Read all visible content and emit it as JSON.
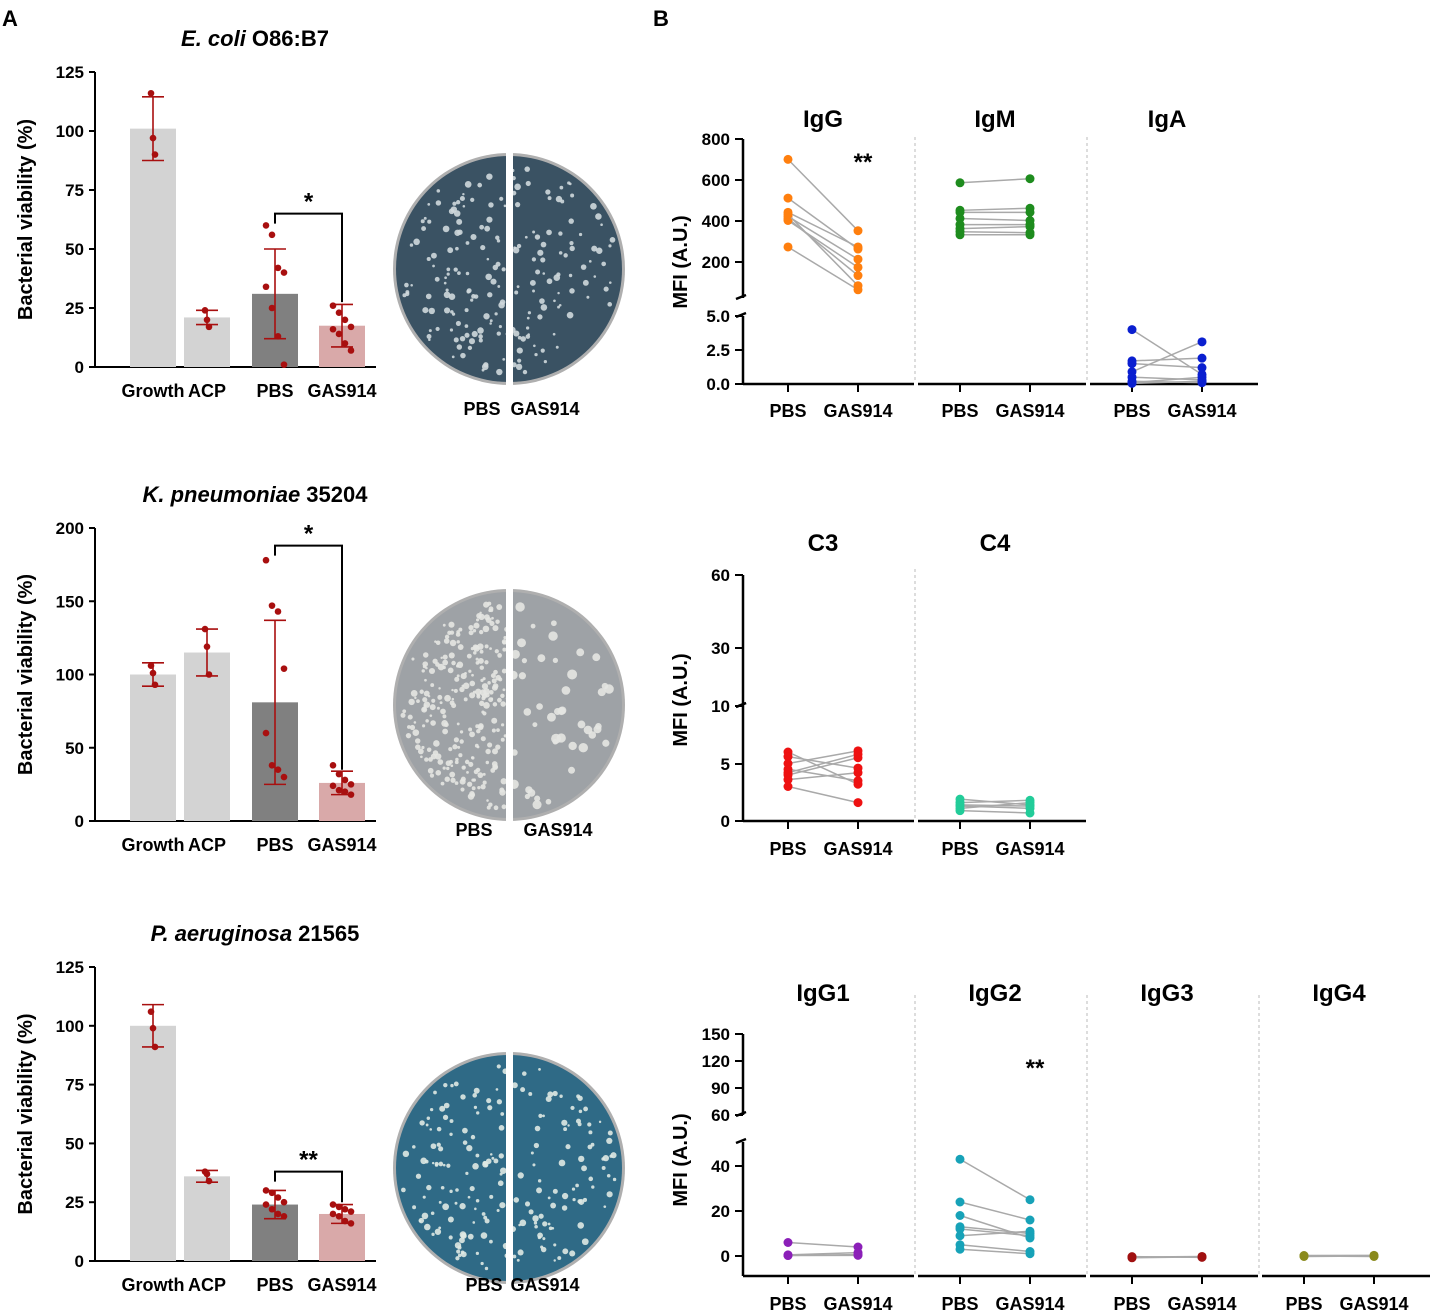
{
  "figure": {
    "panel_a_label": "A",
    "panel_b_label": "B"
  },
  "colors": {
    "bar_growth": "#d3d3d3",
    "bar_acp": "#d3d3d3",
    "bar_pbs": "#808080",
    "bar_gas914": "#d9a9a9",
    "dot_red": "#a80f0f",
    "line_gray": "#a9a9a9",
    "IgG": "#ff7f0e",
    "IgM": "#1e8c1e",
    "IgA": "#0a1fd0",
    "C3": "#ee1111",
    "C4": "#22cc99",
    "IgG1": "#8b1fb8",
    "IgG2": "#17a2b8",
    "IgG3": "#a01010",
    "IgG4": "#8a8a1c"
  },
  "plates": [
    {
      "label_left": "PBS",
      "label_right": "GAS914",
      "tint": "#3a5263",
      "colony": "#cfd8dc"
    },
    {
      "label_left": "PBS",
      "label_right": "GAS914",
      "tint": "#9ea2a6",
      "colony": "#e4e6e2"
    },
    {
      "label_left": "PBS",
      "label_right": "GAS914",
      "tint": "#2f6a86",
      "colony": "#dfe9e3"
    }
  ],
  "chart_data": [
    {
      "type": "bar",
      "panel": "A",
      "title_italic": "E. coli",
      "title_rest": "O86:B7",
      "ylabel": "Bacterial viability (%)",
      "categories": [
        "Growth",
        "ACP",
        "PBS",
        "GAS914"
      ],
      "values": [
        101,
        21,
        31,
        17.5
      ],
      "errors": [
        13.5,
        3,
        19,
        9
      ],
      "points": [
        [
          116,
          97,
          90
        ],
        [
          24,
          20,
          17
        ],
        [
          60,
          56,
          42,
          40,
          34,
          25,
          13,
          1
        ],
        [
          26,
          23,
          20,
          17,
          16,
          14,
          10,
          7
        ]
      ],
      "ylim": [
        0,
        125
      ],
      "yticks": [
        0,
        25,
        50,
        75,
        100,
        125
      ],
      "significance": {
        "from": 2,
        "to": 3,
        "label": "*"
      }
    },
    {
      "type": "bar",
      "panel": "A",
      "title_italic": "K. pneumoniae",
      "title_rest": "35204",
      "ylabel": "Bacterial viability (%)",
      "categories": [
        "Growth",
        "ACP",
        "PBS",
        "GAS914"
      ],
      "values": [
        100,
        115,
        81,
        26
      ],
      "errors": [
        8,
        16,
        56,
        8
      ],
      "points": [
        [
          106,
          101,
          93
        ],
        [
          131,
          119,
          100
        ],
        [
          178,
          147,
          143,
          104,
          60,
          38,
          35,
          30
        ],
        [
          38,
          32,
          28,
          25,
          24,
          21,
          20,
          18
        ]
      ],
      "ylim": [
        0,
        200
      ],
      "yticks": [
        0,
        50,
        100,
        150,
        200
      ],
      "significance": {
        "from": 2,
        "to": 3,
        "label": "*"
      }
    },
    {
      "type": "bar",
      "panel": "A",
      "title_italic": "P. aeruginosa",
      "title_rest": "21565",
      "ylabel": "Bacterial viability (%)",
      "categories": [
        "Growth",
        "ACP",
        "PBS",
        "GAS914"
      ],
      "values": [
        100,
        36,
        24,
        20
      ],
      "errors": [
        9,
        2.5,
        6,
        4
      ],
      "points": [
        [
          106,
          99,
          91
        ],
        [
          38,
          37,
          34
        ],
        [
          30,
          29,
          27,
          25,
          24,
          22,
          20,
          19
        ],
        [
          24,
          23,
          22,
          21,
          20,
          19,
          17,
          16
        ]
      ],
      "ylim": [
        0,
        125
      ],
      "yticks": [
        0,
        25,
        50,
        75,
        100,
        125
      ],
      "significance": {
        "from": 2,
        "to": 3,
        "label": "**"
      }
    },
    {
      "type": "scatter",
      "subtype": "paired",
      "panel": "B",
      "ylabel": "MFI (A.U.)",
      "yaxis_segments": [
        {
          "min": 0,
          "max": 5,
          "ticks": [
            "0.0",
            "2.5",
            "5.0"
          ]
        },
        {
          "min": 0,
          "max": 800,
          "ticks": [
            "200",
            "400",
            "600",
            "800"
          ]
        }
      ],
      "x_categories": [
        "PBS",
        "GAS914"
      ],
      "subplots": [
        {
          "name": "IgG",
          "significance": "**",
          "pairs": [
            [
              700,
              350
            ],
            [
              510,
              260
            ],
            [
              440,
              270
            ],
            [
              420,
              210
            ],
            [
              410,
              130
            ],
            [
              400,
              170
            ],
            [
              270,
              60
            ],
            [
              430,
              80
            ]
          ]
        },
        {
          "name": "IgM",
          "significance": "",
          "pairs": [
            [
              585,
              605
            ],
            [
              450,
              460
            ],
            [
              440,
              440
            ],
            [
              410,
              400
            ],
            [
              380,
              380
            ],
            [
              360,
              370
            ],
            [
              345,
              340
            ],
            [
              330,
              330
            ]
          ]
        },
        {
          "name": "IgA",
          "significance": "",
          "pairs": [
            [
              4.0,
              0.7
            ],
            [
              1.7,
              1.9
            ],
            [
              1.5,
              1.2
            ],
            [
              0.9,
              3.1
            ],
            [
              0.5,
              0.3
            ],
            [
              0.2,
              0.1
            ],
            [
              0.1,
              0.5
            ],
            [
              0.05,
              0.2
            ]
          ]
        }
      ]
    },
    {
      "type": "scatter",
      "subtype": "paired",
      "panel": "B",
      "ylabel": "MFI (A.U.)",
      "yaxis_segments": [
        {
          "min": 0,
          "max": 10,
          "ticks": [
            "0",
            "5",
            "10"
          ]
        },
        {
          "min": 10,
          "max": 60,
          "ticks": [
            "30",
            "60"
          ]
        }
      ],
      "x_categories": [
        "PBS",
        "GAS914"
      ],
      "subplots": [
        {
          "name": "C3",
          "significance": "",
          "pairs": [
            [
              6.0,
              3.2
            ],
            [
              5.6,
              4.6
            ],
            [
              5.0,
              6.1
            ],
            [
              4.5,
              3.5
            ],
            [
              4.0,
              5.5
            ],
            [
              3.6,
              4.2
            ],
            [
              3.0,
              1.6
            ],
            [
              4.2,
              5.8
            ]
          ]
        },
        {
          "name": "C4",
          "significance": "",
          "pairs": [
            [
              1.9,
              1.4
            ],
            [
              1.6,
              1.8
            ],
            [
              1.3,
              1.1
            ],
            [
              1.1,
              1.6
            ],
            [
              0.9,
              0.7
            ],
            [
              1.4,
              1.3
            ]
          ]
        }
      ]
    },
    {
      "type": "scatter",
      "subtype": "paired",
      "panel": "B",
      "ylabel": "MFI (A.U.)",
      "yaxis_segments": [
        {
          "min": 0,
          "max": 50,
          "ticks": [
            "0",
            "20",
            "40"
          ]
        },
        {
          "min": 50,
          "max": 150,
          "ticks": [
            "60",
            "90",
            "120",
            "150"
          ]
        }
      ],
      "x_categories": [
        "PBS",
        "GAS914"
      ],
      "subplots": [
        {
          "name": "IgG1",
          "significance": "",
          "pairs": [
            [
              6,
              4
            ],
            [
              0.5,
              1.5
            ],
            [
              0.3,
              0.6
            ],
            [
              0.2,
              0.3
            ]
          ]
        },
        {
          "name": "IgG2",
          "significance": "**",
          "pairs": [
            [
              43,
              25
            ],
            [
              24,
              16
            ],
            [
              18,
              8
            ],
            [
              13,
              10
            ],
            [
              12,
              9
            ],
            [
              9,
              11
            ],
            [
              5,
              2
            ],
            [
              3,
              1
            ]
          ]
        },
        {
          "name": "IgG3",
          "significance": "",
          "pairs": [
            [
              -0.5,
              -0.2
            ],
            [
              -0.8,
              -0.4
            ],
            [
              -0.3,
              -0.6
            ]
          ]
        },
        {
          "name": "IgG4",
          "significance": "",
          "pairs": [
            [
              0.2,
              0.3
            ],
            [
              -0.2,
              0.0
            ],
            [
              0.0,
              -0.2
            ]
          ]
        }
      ]
    }
  ]
}
